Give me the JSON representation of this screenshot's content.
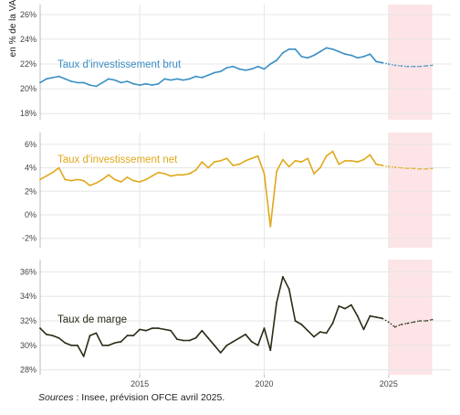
{
  "y_axis_label": "en % de la VA",
  "source": {
    "label": "Sources",
    "text": " : Insee, prévision OFCE avril 2025."
  },
  "colors": {
    "forecast_shade": "#fde4e6",
    "grid": "#e6e6e6",
    "axis": "#bbbbbb"
  },
  "chart_data": [
    {
      "type": "line",
      "panel": "top",
      "series_label": "Taux d'investissement brut",
      "color": "#3a8fc4",
      "ylim": [
        17.5,
        26.8
      ],
      "yticks": [
        18,
        20,
        22,
        24,
        26
      ],
      "ytick_labels": [
        "18%",
        "20%",
        "22%",
        "24%",
        "26%"
      ],
      "xlim": [
        2011.0,
        2027.5
      ],
      "xticks": [
        2015,
        2020,
        2025
      ],
      "forecast_start": 2025.0,
      "forecast_end": 2026.75,
      "historical": {
        "x": [
          2011.0,
          2011.25,
          2011.5,
          2011.75,
          2012.0,
          2012.25,
          2012.5,
          2012.75,
          2013.0,
          2013.25,
          2013.5,
          2013.75,
          2014.0,
          2014.25,
          2014.5,
          2014.75,
          2015.0,
          2015.25,
          2015.5,
          2015.75,
          2016.0,
          2016.25,
          2016.5,
          2016.75,
          2017.0,
          2017.25,
          2017.5,
          2017.75,
          2018.0,
          2018.25,
          2018.5,
          2018.75,
          2019.0,
          2019.25,
          2019.5,
          2019.75,
          2020.0,
          2020.25,
          2020.5,
          2020.75,
          2021.0,
          2021.25,
          2021.5,
          2021.75,
          2022.0,
          2022.25,
          2022.5,
          2022.75,
          2023.0,
          2023.25,
          2023.5,
          2023.75,
          2024.0,
          2024.25,
          2024.5,
          2024.75
        ],
        "y": [
          20.5,
          20.8,
          20.9,
          21.0,
          20.8,
          20.6,
          20.5,
          20.5,
          20.3,
          20.2,
          20.5,
          20.8,
          20.7,
          20.5,
          20.6,
          20.4,
          20.3,
          20.4,
          20.3,
          20.4,
          20.8,
          20.7,
          20.8,
          20.7,
          20.8,
          21.0,
          20.9,
          21.1,
          21.3,
          21.4,
          21.7,
          21.8,
          21.6,
          21.5,
          21.6,
          21.8,
          21.6,
          22.0,
          22.3,
          22.9,
          23.2,
          23.2,
          22.6,
          22.5,
          22.7,
          23.0,
          23.3,
          23.2,
          23.0,
          22.8,
          22.7,
          22.5,
          22.6,
          22.8,
          22.2,
          22.1
        ]
      },
      "forecast": {
        "x": [
          2024.75,
          2025.0,
          2025.25,
          2025.5,
          2025.75,
          2026.0,
          2026.25,
          2026.5,
          2026.75
        ],
        "y": [
          22.1,
          22.0,
          21.9,
          21.85,
          21.8,
          21.8,
          21.8,
          21.85,
          21.9
        ]
      }
    },
    {
      "type": "line",
      "panel": "middle",
      "series_label": "Taux d'investissement net",
      "color": "#e0a91c",
      "ylim": [
        -2.8,
        7.0
      ],
      "yticks": [
        -2,
        0,
        2,
        4,
        6
      ],
      "ytick_labels": [
        "-2%",
        "0%",
        "2%",
        "4%",
        "6%"
      ],
      "xlim": [
        2011.0,
        2027.5
      ],
      "xticks": [
        2015,
        2020,
        2025
      ],
      "forecast_start": 2025.0,
      "forecast_end": 2026.75,
      "historical": {
        "x": [
          2011.0,
          2011.25,
          2011.5,
          2011.75,
          2012.0,
          2012.25,
          2012.5,
          2012.75,
          2013.0,
          2013.25,
          2013.5,
          2013.75,
          2014.0,
          2014.25,
          2014.5,
          2014.75,
          2015.0,
          2015.25,
          2015.5,
          2015.75,
          2016.0,
          2016.25,
          2016.5,
          2016.75,
          2017.0,
          2017.25,
          2017.5,
          2017.75,
          2018.0,
          2018.25,
          2018.5,
          2018.75,
          2019.0,
          2019.25,
          2019.5,
          2019.75,
          2020.0,
          2020.25,
          2020.5,
          2020.75,
          2021.0,
          2021.25,
          2021.5,
          2021.75,
          2022.0,
          2022.25,
          2022.5,
          2022.75,
          2023.0,
          2023.25,
          2023.5,
          2023.75,
          2024.0,
          2024.25,
          2024.5,
          2024.75
        ],
        "y": [
          3.0,
          3.3,
          3.6,
          4.0,
          3.0,
          2.9,
          3.0,
          2.9,
          2.5,
          2.7,
          3.0,
          3.4,
          3.0,
          2.8,
          3.2,
          2.9,
          2.8,
          3.0,
          3.3,
          3.6,
          3.5,
          3.3,
          3.4,
          3.4,
          3.5,
          3.8,
          4.5,
          4.0,
          4.5,
          4.6,
          4.8,
          4.2,
          4.3,
          4.6,
          4.8,
          5.0,
          3.5,
          -1.0,
          3.7,
          4.7,
          4.1,
          4.6,
          4.5,
          4.8,
          3.5,
          4.0,
          5.0,
          5.4,
          4.3,
          4.6,
          4.6,
          4.5,
          4.7,
          5.1,
          4.3,
          4.2
        ]
      },
      "forecast": {
        "x": [
          2024.75,
          2025.0,
          2025.25,
          2025.5,
          2025.75,
          2026.0,
          2026.25,
          2026.5,
          2026.75
        ],
        "y": [
          4.2,
          4.1,
          4.05,
          4.0,
          3.95,
          3.95,
          3.9,
          3.9,
          3.95
        ]
      }
    },
    {
      "type": "line",
      "panel": "bottom",
      "series_label": "Taux de marge",
      "color": "#2b2b17",
      "ylim": [
        27.6,
        37.0
      ],
      "yticks": [
        28,
        30,
        32,
        34,
        36
      ],
      "ytick_labels": [
        "28%",
        "30%",
        "32%",
        "34%",
        "36%"
      ],
      "xlim": [
        2011.0,
        2027.5
      ],
      "xticks": [
        2015,
        2020,
        2025
      ],
      "xtick_labels": [
        "2015",
        "2020",
        "2025"
      ],
      "forecast_start": 2025.0,
      "forecast_end": 2026.75,
      "historical": {
        "x": [
          2011.0,
          2011.25,
          2011.5,
          2011.75,
          2012.0,
          2012.25,
          2012.5,
          2012.75,
          2013.0,
          2013.25,
          2013.5,
          2013.75,
          2014.0,
          2014.25,
          2014.5,
          2014.75,
          2015.0,
          2015.25,
          2015.5,
          2015.75,
          2016.0,
          2016.25,
          2016.5,
          2016.75,
          2017.0,
          2017.25,
          2017.5,
          2017.75,
          2018.0,
          2018.25,
          2018.5,
          2018.75,
          2019.0,
          2019.25,
          2019.5,
          2019.75,
          2020.0,
          2020.25,
          2020.5,
          2020.75,
          2021.0,
          2021.25,
          2021.5,
          2021.75,
          2022.0,
          2022.25,
          2022.5,
          2022.75,
          2023.0,
          2023.25,
          2023.5,
          2023.75,
          2024.0,
          2024.25,
          2024.5,
          2024.75
        ],
        "y": [
          31.4,
          30.9,
          30.8,
          30.6,
          30.2,
          30.0,
          30.0,
          29.1,
          30.8,
          31.0,
          30.0,
          30.0,
          30.2,
          30.3,
          30.8,
          30.8,
          31.3,
          31.2,
          31.4,
          31.4,
          31.3,
          31.2,
          30.5,
          30.4,
          30.4,
          30.6,
          31.2,
          30.6,
          30.0,
          29.4,
          30.0,
          30.3,
          30.6,
          30.9,
          30.3,
          30.0,
          31.4,
          29.6,
          33.5,
          35.6,
          34.6,
          32.0,
          31.7,
          31.2,
          30.7,
          31.1,
          31.0,
          31.8,
          33.2,
          33.0,
          33.3,
          32.4,
          31.3,
          32.4,
          32.3,
          32.2
        ]
      },
      "forecast": {
        "x": [
          2024.75,
          2025.0,
          2025.25,
          2025.5,
          2025.75,
          2026.0,
          2026.25,
          2026.5,
          2026.75
        ],
        "y": [
          32.2,
          31.9,
          31.5,
          31.7,
          31.8,
          31.9,
          32.0,
          32.0,
          32.1
        ]
      }
    }
  ]
}
